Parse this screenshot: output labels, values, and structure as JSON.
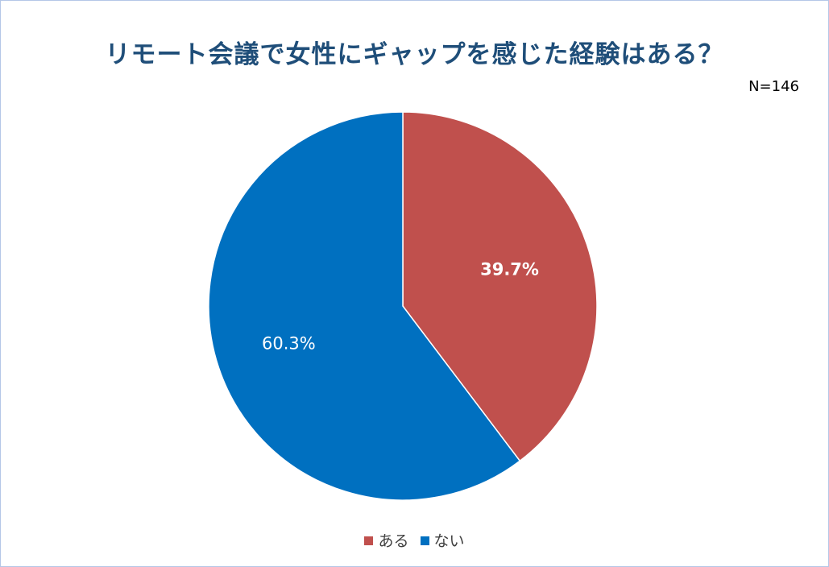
{
  "sample_size": "N=146",
  "colors": {
    "aru": "#c0504d",
    "nai": "#0070c0",
    "title": "#1f4e79"
  },
  "chart_data": {
    "type": "pie",
    "title": "リモート会議で女性にギャップを感じた経験はある？",
    "categories": [
      "ある",
      "ない"
    ],
    "values": [
      39.7,
      60.3
    ],
    "data_labels": [
      "39.7%",
      "60.3%"
    ],
    "colors": [
      "#c0504d",
      "#0070c0"
    ],
    "start_angle": "12 o'clock",
    "direction": "clockwise",
    "legend": "bottom"
  }
}
